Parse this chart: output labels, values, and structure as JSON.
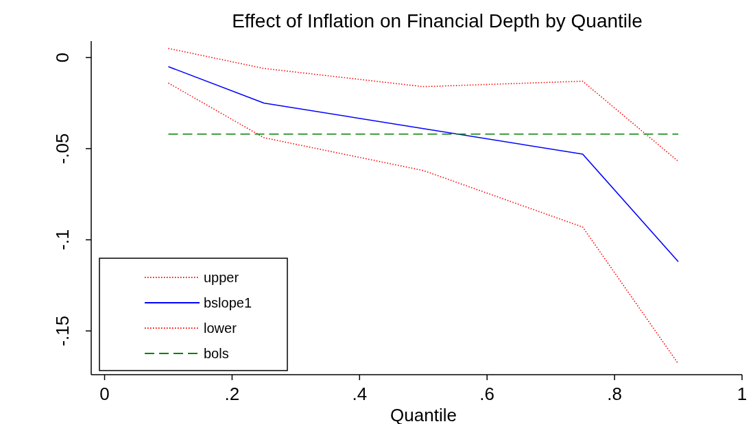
{
  "chart_data": {
    "type": "line",
    "title": "Effect of Inflation on Financial Depth by Quantile",
    "xlabel": "Quantile",
    "x": [
      0.1,
      0.25,
      0.5,
      0.75,
      0.9
    ],
    "series": [
      {
        "name": "upper",
        "color": "#ff0000",
        "line_style": "dotted",
        "values": [
          0.005,
          -0.006,
          -0.016,
          -0.013,
          -0.057
        ]
      },
      {
        "name": "bslope1",
        "color": "#0000ff",
        "line_style": "solid",
        "values": [
          -0.005,
          -0.025,
          -0.039,
          -0.053,
          -0.112
        ]
      },
      {
        "name": "lower",
        "color": "#ff0000",
        "line_style": "dotted",
        "values": [
          -0.014,
          -0.044,
          -0.062,
          -0.093,
          -0.168
        ]
      },
      {
        "name": "bols",
        "color": "#008000",
        "line_style": "dashed",
        "values": [
          -0.042,
          -0.042,
          -0.042,
          -0.042,
          -0.042
        ]
      }
    ],
    "xlim": [
      -0.021,
      1.0
    ],
    "ylim": [
      -0.174,
      0.009
    ],
    "xticks": [
      0,
      {
        "value": 0.2,
        "label": ".2"
      },
      {
        "value": 0.4,
        "label": ".4"
      },
      {
        "value": 0.6,
        "label": ".6"
      },
      {
        "value": 0.8,
        "label": ".8"
      },
      1
    ],
    "yticks": [
      0,
      {
        "value": -0.05,
        "label": "-.05"
      },
      {
        "value": -0.1,
        "label": "-.1"
      },
      {
        "value": -0.15,
        "label": "-.15"
      }
    ],
    "grid": false,
    "legend": "bottom left",
    "marker": "none"
  }
}
